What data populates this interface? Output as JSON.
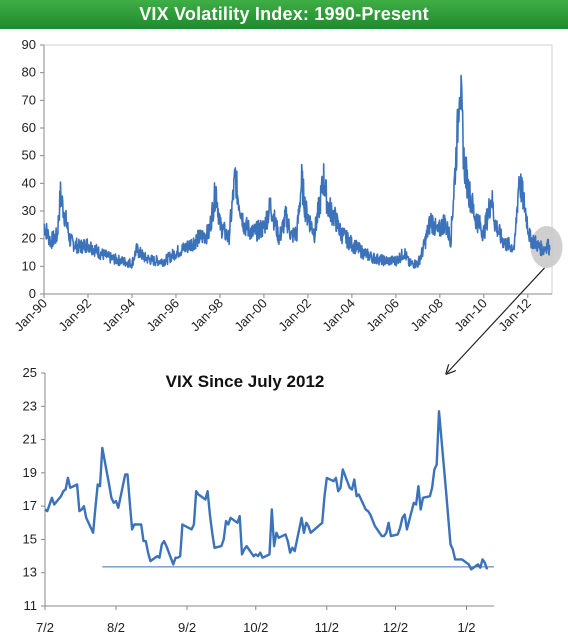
{
  "banner": {
    "title": "VIX Volatility Index: 1990-Present"
  },
  "colors": {
    "series": "#3b72b9",
    "banner": "#2e9b3b",
    "highlight": "#c7c7c7"
  },
  "chart_data": [
    {
      "type": "line",
      "title": "VIX Volatility Index: 1990-Present",
      "xlabel": "",
      "ylabel": "",
      "ylim": [
        0,
        90
      ],
      "yticks": [
        0,
        10,
        20,
        30,
        40,
        50,
        60,
        70,
        80,
        90
      ],
      "xlim": [
        1990.0,
        2013.1
      ],
      "xtick_labels": [
        "Jan-90",
        "Jan-92",
        "Jan-94",
        "Jan-96",
        "Jan-98",
        "Jan-00",
        "Jan-02",
        "Jan-04",
        "Jan-06",
        "Jan-08",
        "Jan-10",
        "Jan-12"
      ],
      "x": [
        1990.0,
        1990.3,
        1990.6,
        1990.75,
        1990.9,
        1991.2,
        1991.6,
        1992.0,
        1992.5,
        1993.0,
        1993.5,
        1994.0,
        1994.2,
        1994.6,
        1995.0,
        1995.5,
        1996.0,
        1996.5,
        1997.0,
        1997.5,
        1997.82,
        1998.0,
        1998.4,
        1998.7,
        1998.8,
        1999.1,
        1999.5,
        2000.0,
        2000.3,
        2000.7,
        2001.0,
        2001.25,
        2001.5,
        2001.72,
        2001.9,
        2002.3,
        2002.55,
        2002.72,
        2002.9,
        2003.2,
        2003.5,
        2004.0,
        2004.5,
        2005.0,
        2005.5,
        2006.0,
        2006.4,
        2006.6,
        2007.0,
        2007.2,
        2007.6,
        2007.9,
        2008.2,
        2008.5,
        2008.8,
        2008.9,
        2009.1,
        2009.3,
        2009.6,
        2010.0,
        2010.35,
        2010.5,
        2010.8,
        2011.0,
        2011.4,
        2011.6,
        2011.75,
        2011.9,
        2012.1,
        2012.3,
        2012.5,
        2012.7,
        2012.9,
        2013.0
      ],
      "y": [
        25,
        19,
        21,
        36,
        30,
        19,
        17,
        18,
        15,
        13,
        12,
        11,
        16,
        13,
        12,
        12,
        15,
        17,
        20,
        22,
        38,
        25,
        20,
        43,
        36,
        25,
        22,
        24,
        32,
        20,
        28,
        21,
        22,
        41,
        30,
        22,
        33,
        42,
        32,
        28,
        22,
        18,
        15,
        13,
        12,
        12,
        15,
        11,
        11,
        15,
        27,
        22,
        26,
        20,
        58,
        80,
        48,
        38,
        28,
        22,
        35,
        26,
        20,
        18,
        17,
        42,
        36,
        30,
        20,
        19,
        17,
        16,
        18,
        16
      ]
    },
    {
      "type": "line",
      "title": "VIX Since July 2012",
      "xlabel": "",
      "ylabel": "",
      "ylim": [
        11,
        25
      ],
      "yticks": [
        11,
        13,
        15,
        17,
        19,
        21,
        23,
        25
      ],
      "xtick_labels": [
        "7/2",
        "8/2",
        "9/2",
        "10/2",
        "11/2",
        "12/2",
        "1/2"
      ],
      "x": [
        "2012-07-02",
        "2012-07-03",
        "2012-07-05",
        "2012-07-06",
        "2012-07-09",
        "2012-07-10",
        "2012-07-11",
        "2012-07-12",
        "2012-07-13",
        "2012-07-16",
        "2012-07-17",
        "2012-07-18",
        "2012-07-19",
        "2012-07-20",
        "2012-07-23",
        "2012-07-24",
        "2012-07-25",
        "2012-07-26",
        "2012-07-27",
        "2012-07-30",
        "2012-07-31",
        "2012-08-01",
        "2012-08-02",
        "2012-08-03",
        "2012-08-06",
        "2012-08-07",
        "2012-08-08",
        "2012-08-09",
        "2012-08-10",
        "2012-08-13",
        "2012-08-14",
        "2012-08-15",
        "2012-08-16",
        "2012-08-17",
        "2012-08-20",
        "2012-08-21",
        "2012-08-22",
        "2012-08-23",
        "2012-08-24",
        "2012-08-27",
        "2012-08-28",
        "2012-08-29",
        "2012-08-30",
        "2012-08-31",
        "2012-09-04",
        "2012-09-05",
        "2012-09-06",
        "2012-09-07",
        "2012-09-10",
        "2012-09-11",
        "2012-09-12",
        "2012-09-13",
        "2012-09-14",
        "2012-09-17",
        "2012-09-18",
        "2012-09-19",
        "2012-09-20",
        "2012-09-21",
        "2012-09-24",
        "2012-09-25",
        "2012-09-26",
        "2012-09-27",
        "2012-09-28",
        "2012-10-01",
        "2012-10-02",
        "2012-10-03",
        "2012-10-04",
        "2012-10-05",
        "2012-10-08",
        "2012-10-09",
        "2012-10-10",
        "2012-10-11",
        "2012-10-12",
        "2012-10-15",
        "2012-10-16",
        "2012-10-17",
        "2012-10-18",
        "2012-10-19",
        "2012-10-22",
        "2012-10-23",
        "2012-10-24",
        "2012-10-25",
        "2012-10-26",
        "2012-10-31",
        "2012-11-01",
        "2012-11-02",
        "2012-11-05",
        "2012-11-06",
        "2012-11-07",
        "2012-11-08",
        "2012-11-09",
        "2012-11-12",
        "2012-11-13",
        "2012-11-14",
        "2012-11-15",
        "2012-11-16",
        "2012-11-19",
        "2012-11-20",
        "2012-11-21",
        "2012-11-23",
        "2012-11-26",
        "2012-11-27",
        "2012-11-28",
        "2012-11-29",
        "2012-11-30",
        "2012-12-03",
        "2012-12-04",
        "2012-12-05",
        "2012-12-06",
        "2012-12-07",
        "2012-12-10",
        "2012-12-11",
        "2012-12-12",
        "2012-12-13",
        "2012-12-14",
        "2012-12-17",
        "2012-12-18",
        "2012-12-19",
        "2012-12-20",
        "2012-12-21",
        "2012-12-24",
        "2012-12-26",
        "2012-12-27",
        "2012-12-28",
        "2012-12-31",
        "2013-01-02",
        "2013-01-03",
        "2013-01-04",
        "2013-01-07",
        "2013-01-08",
        "2013-01-09",
        "2013-01-10",
        "2013-01-11"
      ],
      "y": [
        16.8,
        16.7,
        17.5,
        17.1,
        17.6,
        17.9,
        18.0,
        18.7,
        18.1,
        18.3,
        16.7,
        16.8,
        17.0,
        16.3,
        15.4,
        16.9,
        18.3,
        18.2,
        20.5,
        18.3,
        17.5,
        17.2,
        17.3,
        16.9,
        18.9,
        18.9,
        17.2,
        15.6,
        15.9,
        15.9,
        14.9,
        14.9,
        14.2,
        13.7,
        14.0,
        13.9,
        14.7,
        14.9,
        14.6,
        13.5,
        13.9,
        13.9,
        14.0,
        15.9,
        15.6,
        15.9,
        17.9,
        17.7,
        17.4,
        17.9,
        16.5,
        15.4,
        14.5,
        14.6,
        15.0,
        16.1,
        15.9,
        16.3,
        16.0,
        16.4,
        14.1,
        14.4,
        14.6,
        14.0,
        14.1,
        14.0,
        14.2,
        13.9,
        14.1,
        16.8,
        14.6,
        15.4,
        15.1,
        15.3,
        14.9,
        14.2,
        14.5,
        14.3,
        16.3,
        15.4,
        16.0,
        15.8,
        15.4,
        16.0,
        17.6,
        18.7,
        18.5,
        18.7,
        17.9,
        18.1,
        19.2,
        18.1,
        18.0,
        18.6,
        17.6,
        17.7,
        16.8,
        16.7,
        16.5,
        15.8,
        15.2,
        15.2,
        15.4,
        16.0,
        15.2,
        15.3,
        15.7,
        16.3,
        16.5,
        15.6,
        17.2,
        17.1,
        18.2,
        16.8,
        17.5,
        17.6,
        18.1,
        19.2,
        19.5,
        22.7,
        18.0,
        14.7,
        14.4,
        13.8,
        13.8,
        13.6,
        13.5,
        13.2,
        13.5,
        13.3,
        13.8,
        13.6,
        13.2
      ],
      "reference_line": 13.35
    }
  ]
}
